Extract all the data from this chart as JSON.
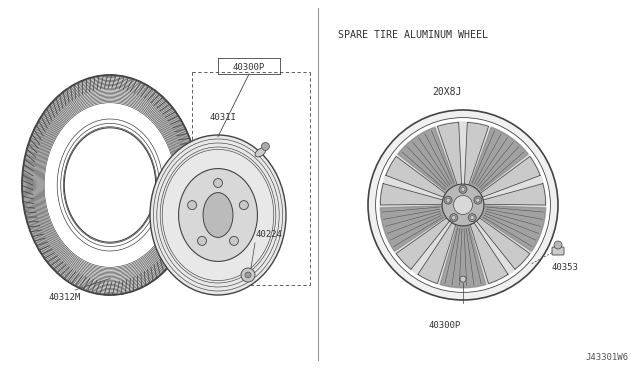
{
  "bg_color": "#ffffff",
  "title_text": "SPARE TIRE ALUMINUM WHEEL",
  "label_40312M": "40312M",
  "label_40300P_left": "40300P",
  "label_4031I": "4031I",
  "label_40224": "40224",
  "label_40300P_right": "40300P",
  "label_40353": "40353",
  "label_20x8J": "20X8J",
  "watermark": "J43301W6",
  "line_color": "#444444",
  "text_color": "#333333",
  "divider_color": "#999999"
}
